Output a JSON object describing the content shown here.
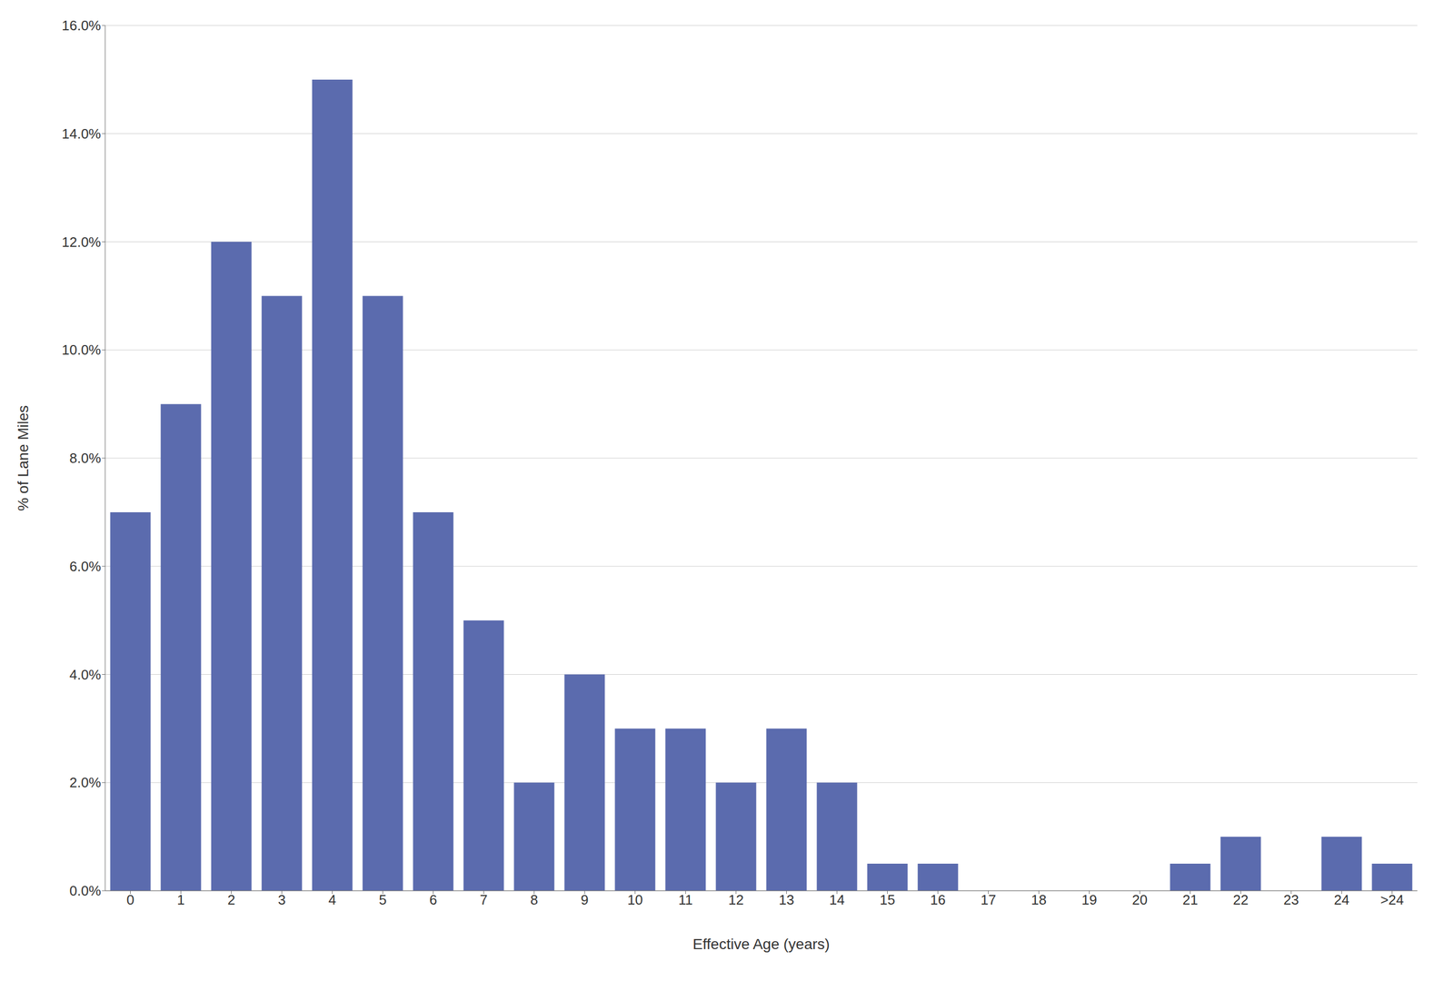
{
  "chart_data": {
    "type": "bar",
    "categories": [
      "0",
      "1",
      "2",
      "3",
      "4",
      "5",
      "6",
      "7",
      "8",
      "9",
      "10",
      "11",
      "12",
      "13",
      "14",
      "15",
      "16",
      "17",
      "18",
      "19",
      "20",
      "21",
      "22",
      "23",
      "24",
      ">24"
    ],
    "values": [
      0.07,
      0.09,
      0.12,
      0.11,
      0.15,
      0.11,
      0.07,
      0.05,
      0.02,
      0.04,
      0.03,
      0.03,
      0.02,
      0.03,
      0.02,
      0.005,
      0.005,
      0.0,
      0.0,
      0.0,
      0.0,
      0.005,
      0.01,
      0.0,
      0.01,
      0.005
    ],
    "color": "#5B6BAE",
    "xlabel": "Effective Age (years)",
    "ylabel": "% of Lane Miles",
    "ylim": [
      0,
      0.16
    ],
    "yticks": [
      {
        "value": 0.0,
        "label": "0.0%"
      },
      {
        "value": 0.02,
        "label": "2.0%"
      },
      {
        "value": 0.04,
        "label": "4.0%"
      },
      {
        "value": 0.06,
        "label": "6.0%"
      },
      {
        "value": 0.08,
        "label": "8.0%"
      },
      {
        "value": 0.1,
        "label": "10.0%"
      },
      {
        "value": 0.12,
        "label": "12.0%"
      },
      {
        "value": 0.14,
        "label": "14.0%"
      },
      {
        "value": 0.16,
        "label": "16.0%"
      }
    ],
    "grid": true
  }
}
